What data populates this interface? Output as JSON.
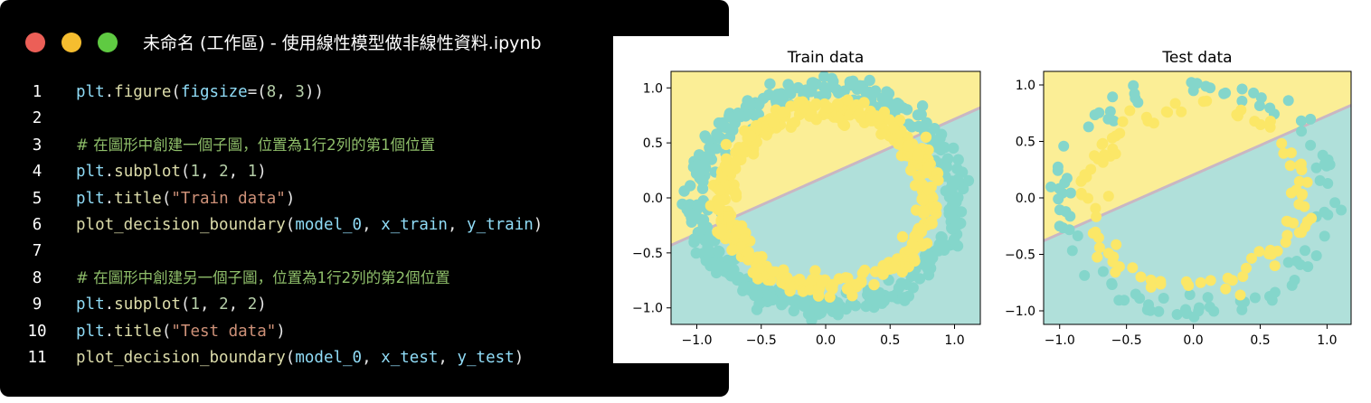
{
  "window": {
    "title": "未命名 (工作區) - 使用線性模型做非線性資料.ipynb",
    "controls": [
      {
        "name": "close",
        "color": "#ec5f57"
      },
      {
        "name": "minimize",
        "color": "#f5bd2f"
      },
      {
        "name": "maximize",
        "color": "#5fca42"
      }
    ]
  },
  "code": {
    "lines": [
      {
        "num": "1",
        "tokens": [
          {
            "t": "plt",
            "c": "obj"
          },
          {
            "t": ".",
            "c": "pun"
          },
          {
            "t": "figure",
            "c": "fn"
          },
          {
            "t": "(",
            "c": "pun"
          },
          {
            "t": "figsize",
            "c": "obj"
          },
          {
            "t": "=(",
            "c": "pun"
          },
          {
            "t": "8",
            "c": "num"
          },
          {
            "t": ", ",
            "c": "pun"
          },
          {
            "t": "3",
            "c": "num"
          },
          {
            "t": "))",
            "c": "pun"
          }
        ]
      },
      {
        "num": "2",
        "tokens": []
      },
      {
        "num": "3",
        "comment": "# 在圖形中創建一個子圖，位置為1行2列的第1個位置",
        "tokens": []
      },
      {
        "num": "4",
        "tokens": [
          {
            "t": "plt",
            "c": "obj"
          },
          {
            "t": ".",
            "c": "pun"
          },
          {
            "t": "subplot",
            "c": "fn"
          },
          {
            "t": "(",
            "c": "pun"
          },
          {
            "t": "1",
            "c": "num"
          },
          {
            "t": ", ",
            "c": "pun"
          },
          {
            "t": "2",
            "c": "num"
          },
          {
            "t": ", ",
            "c": "pun"
          },
          {
            "t": "1",
            "c": "num"
          },
          {
            "t": ")",
            "c": "pun"
          }
        ]
      },
      {
        "num": "5",
        "tokens": [
          {
            "t": "plt",
            "c": "obj"
          },
          {
            "t": ".",
            "c": "pun"
          },
          {
            "t": "title",
            "c": "fn"
          },
          {
            "t": "(",
            "c": "pun"
          },
          {
            "t": "\"Train data\"",
            "c": "str"
          },
          {
            "t": ")",
            "c": "pun"
          }
        ]
      },
      {
        "num": "6",
        "tokens": [
          {
            "t": "plot_decision_boundary",
            "c": "fn"
          },
          {
            "t": "(",
            "c": "pun"
          },
          {
            "t": "model_0",
            "c": "obj"
          },
          {
            "t": ", ",
            "c": "pun"
          },
          {
            "t": "x_train",
            "c": "obj"
          },
          {
            "t": ", ",
            "c": "pun"
          },
          {
            "t": "y_train",
            "c": "obj"
          },
          {
            "t": ")",
            "c": "pun"
          }
        ]
      },
      {
        "num": "7",
        "tokens": []
      },
      {
        "num": "8",
        "comment": "# 在圖形中創建另一個子圖，位置為1行2列的第2個位置",
        "tokens": []
      },
      {
        "num": "9",
        "tokens": [
          {
            "t": "plt",
            "c": "obj"
          },
          {
            "t": ".",
            "c": "pun"
          },
          {
            "t": "subplot",
            "c": "fn"
          },
          {
            "t": "(",
            "c": "pun"
          },
          {
            "t": "1",
            "c": "num"
          },
          {
            "t": ", ",
            "c": "pun"
          },
          {
            "t": "2",
            "c": "num"
          },
          {
            "t": ", ",
            "c": "pun"
          },
          {
            "t": "2",
            "c": "num"
          },
          {
            "t": ")",
            "c": "pun"
          }
        ]
      },
      {
        "num": "10",
        "tokens": [
          {
            "t": "plt",
            "c": "obj"
          },
          {
            "t": ".",
            "c": "pun"
          },
          {
            "t": "title",
            "c": "fn"
          },
          {
            "t": "(",
            "c": "pun"
          },
          {
            "t": "\"Test data\"",
            "c": "str"
          },
          {
            "t": ")",
            "c": "pun"
          }
        ]
      },
      {
        "num": "11",
        "tokens": [
          {
            "t": "plot_decision_boundary",
            "c": "fn"
          },
          {
            "t": "(",
            "c": "pun"
          },
          {
            "t": "model_0",
            "c": "obj"
          },
          {
            "t": ", ",
            "c": "pun"
          },
          {
            "t": "x_test",
            "c": "obj"
          },
          {
            "t": ", ",
            "c": "pun"
          },
          {
            "t": "y_test",
            "c": "obj"
          },
          {
            "t": ")",
            "c": "pun"
          }
        ]
      }
    ]
  },
  "colors": {
    "region_upper": "#fbee96",
    "region_lower": "#b0e0da",
    "outer_points": "#84d6cb",
    "inner_points": "#fbe767",
    "boundary": "#c9b7c3"
  },
  "chart_data": [
    {
      "type": "scatter",
      "title": "Train data",
      "xlim": [
        -1.2,
        1.2
      ],
      "ylim": [
        -1.15,
        1.15
      ],
      "xticks": [
        -1.0,
        -0.5,
        0.0,
        0.5,
        1.0
      ],
      "yticks": [
        1.0,
        0.5,
        0.0,
        -0.5,
        -1.0
      ],
      "xtick_labels": [
        "−1.0",
        "−0.5",
        "0.0",
        "0.5",
        "1.0"
      ],
      "ytick_labels": [
        "1.0",
        "0.5",
        "0.0",
        "−0.5",
        "−1.0"
      ],
      "decision_boundary": {
        "x": [
          -1.2,
          1.2
        ],
        "y": [
          -0.43,
          0.82
        ]
      },
      "series": [
        {
          "class": "outer",
          "count": 400,
          "radius": 1.0,
          "noise": 0.05
        },
        {
          "class": "inner",
          "count": 400,
          "radius": 0.8,
          "noise": 0.05
        }
      ],
      "grid": false
    },
    {
      "type": "scatter",
      "title": "Test data",
      "xlim": [
        -1.12,
        1.18
      ],
      "ylim": [
        -1.12,
        1.12
      ],
      "xticks": [
        -1.0,
        -0.5,
        0.0,
        0.5,
        1.0
      ],
      "yticks": [
        1.0,
        0.5,
        0.0,
        -0.5,
        -1.0
      ],
      "xtick_labels": [
        "−1.0",
        "−0.5",
        "0.0",
        "0.5",
        "1.0"
      ],
      "ytick_labels": [
        "1.0",
        "0.5",
        "0.0",
        "−0.5",
        "−1.0"
      ],
      "decision_boundary": {
        "x": [
          -1.12,
          1.18
        ],
        "y": [
          -0.38,
          0.82
        ]
      },
      "series": [
        {
          "class": "outer",
          "count": 100,
          "radius": 1.0,
          "noise": 0.05
        },
        {
          "class": "inner",
          "count": 100,
          "radius": 0.8,
          "noise": 0.05
        }
      ],
      "grid": false
    }
  ]
}
